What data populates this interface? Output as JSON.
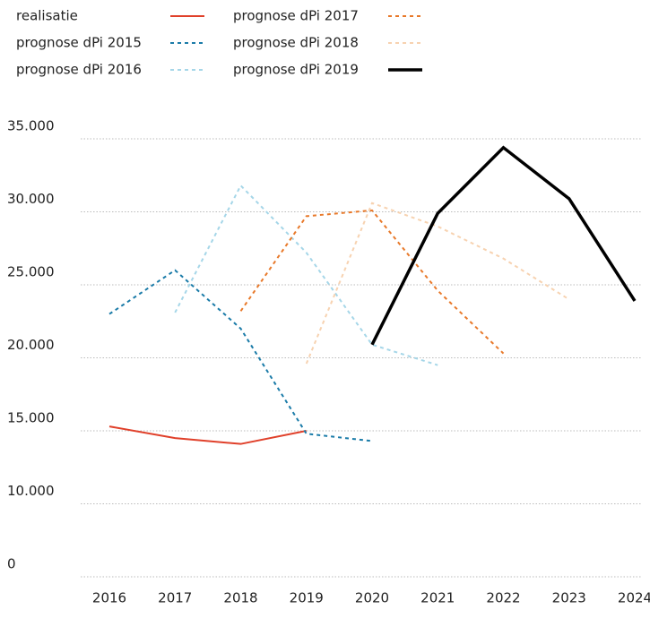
{
  "chart_data": {
    "type": "line",
    "categories": [
      "2016",
      "2017",
      "2018",
      "2019",
      "2020",
      "2021",
      "2022",
      "2023",
      "2024"
    ],
    "series": [
      {
        "name": "realisatie",
        "color": "#e0402a",
        "dashed": false,
        "width": 2,
        "values": [
          15300,
          14500,
          14100,
          15000,
          null,
          null,
          null,
          null,
          null
        ]
      },
      {
        "name": "prognose dPi 2015",
        "color": "#1a7ba8",
        "dashed": true,
        "width": 2,
        "values": [
          23000,
          26000,
          22000,
          14800,
          14300,
          null,
          null,
          null,
          null
        ]
      },
      {
        "name": "prognose dPi 2016",
        "color": "#a5d6e8",
        "dashed": true,
        "width": 2,
        "values": [
          null,
          23100,
          31800,
          27200,
          20900,
          19500,
          null,
          null,
          null
        ]
      },
      {
        "name": "prognose dPi 2017",
        "color": "#e8792a",
        "dashed": true,
        "width": 2,
        "values": [
          null,
          null,
          23200,
          29700,
          30100,
          24600,
          20300,
          null,
          null
        ]
      },
      {
        "name": "prognose dPi 2018",
        "color": "#f7d2b0",
        "dashed": true,
        "width": 2,
        "values": [
          null,
          null,
          null,
          19600,
          30600,
          29000,
          26800,
          24000,
          null
        ]
      },
      {
        "name": "prognose dPi 2019",
        "color": "#000000",
        "dashed": false,
        "width": 3.5,
        "values": [
          null,
          null,
          null,
          null,
          20900,
          29900,
          34400,
          30900,
          23900
        ]
      }
    ],
    "ylim": [
      0,
      35000
    ],
    "yticks": [
      0,
      {
        "value": 10000,
        "label": "10.000"
      },
      {
        "value": 15000,
        "label": "15.000"
      },
      {
        "value": 20000,
        "label": "20.000"
      },
      {
        "value": 25000,
        "label": "25.000"
      },
      {
        "value": 30000,
        "label": "30.000"
      },
      {
        "value": 35000,
        "label": "35.000"
      }
    ],
    "grid": true
  }
}
